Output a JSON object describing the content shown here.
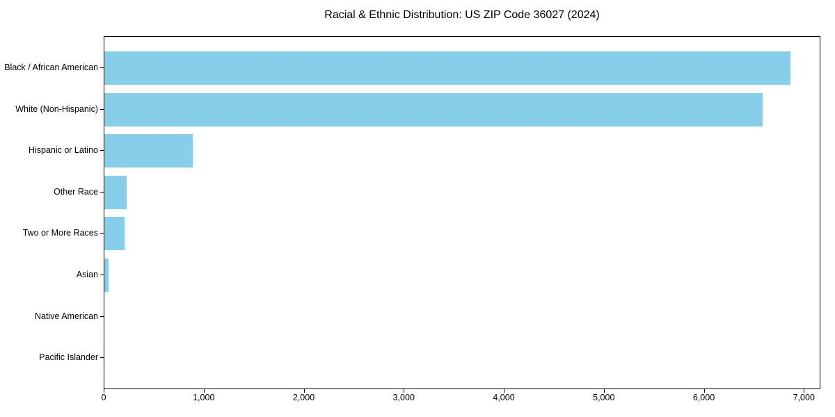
{
  "chart_data": {
    "type": "bar",
    "orientation": "horizontal",
    "title": "Racial & Ethnic Distribution: US ZIP Code 36027 (2024)",
    "categories": [
      "Black / African American",
      "White (Non-Hispanic)",
      "Hispanic or Latino",
      "Other Race",
      "Two or More Races",
      "Asian",
      "Native American",
      "Pacific Islander"
    ],
    "values": [
      6870,
      6590,
      885,
      220,
      205,
      42,
      0,
      0
    ],
    "xlabel": "",
    "ylabel": "",
    "xlim": [
      0,
      7165
    ],
    "xticks": [
      0,
      1000,
      2000,
      3000,
      4000,
      5000,
      6000,
      7000
    ],
    "xtick_labels": [
      "0",
      "1,000",
      "2,000",
      "3,000",
      "4,000",
      "5,000",
      "6,000",
      "7,000"
    ],
    "bar_color": "#87CEEB",
    "axis_color": "#000000",
    "text_color": "#000000",
    "background": "#ffffff",
    "grid": false,
    "legend": null
  }
}
